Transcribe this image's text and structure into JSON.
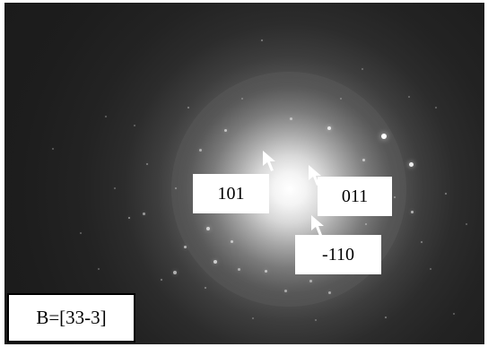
{
  "image": {
    "kind": "electron diffraction pattern",
    "background_color": "#1c1c1c",
    "spot_color": "#ffffff"
  },
  "annotations": {
    "spot_labels": [
      {
        "id": "101",
        "text": "101",
        "arrow_icon": "arrow-pointer-icon"
      },
      {
        "id": "011",
        "text": "011",
        "arrow_icon": "arrow-pointer-icon"
      },
      {
        "id": "-110",
        "text": "-110",
        "arrow_icon": "arrow-pointer-icon"
      }
    ],
    "zone_axis_label": "B=[33-3]"
  }
}
